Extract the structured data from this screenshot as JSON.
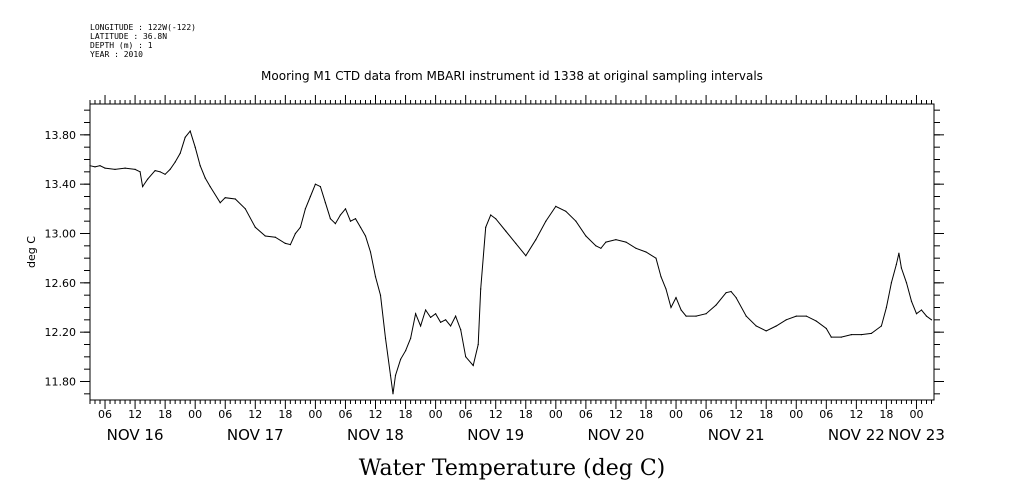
{
  "header": {
    "longitude": "LONGITUDE : 122W(-122)",
    "latitude": "LATITUDE : 36.8N",
    "depth": "DEPTH (m) : 1",
    "year": "YEAR : 2010"
  },
  "chart_data": {
    "type": "line",
    "title": "Mooring M1 CTD data from MBARI instrument id 1338 at original sampling intervals",
    "xlabel": "Water Temperature (deg C)",
    "ylabel": "deg C",
    "ylim": [
      11.65,
      14.05
    ],
    "xlim": [
      "2010-11-16T03:00",
      "2010-11-23T03:30"
    ],
    "y_ticks": [
      {
        "value": 13.8,
        "label": "13.80"
      },
      {
        "value": 13.4,
        "label": "13.40"
      },
      {
        "value": 13.0,
        "label": "13.00"
      },
      {
        "value": 12.6,
        "label": "12.60"
      },
      {
        "value": 12.2,
        "label": "12.20"
      },
      {
        "value": 11.8,
        "label": "11.80"
      }
    ],
    "hour_ticks": [
      {
        "t": "2010-11-16T06:00",
        "label": "06"
      },
      {
        "t": "2010-11-16T12:00",
        "label": "12"
      },
      {
        "t": "2010-11-16T18:00",
        "label": "18"
      },
      {
        "t": "2010-11-17T00:00",
        "label": "00"
      },
      {
        "t": "2010-11-17T06:00",
        "label": "06"
      },
      {
        "t": "2010-11-17T12:00",
        "label": "12"
      },
      {
        "t": "2010-11-17T18:00",
        "label": "18"
      },
      {
        "t": "2010-11-18T00:00",
        "label": "00"
      },
      {
        "t": "2010-11-18T06:00",
        "label": "06"
      },
      {
        "t": "2010-11-18T12:00",
        "label": "12"
      },
      {
        "t": "2010-11-18T18:00",
        "label": "18"
      },
      {
        "t": "2010-11-19T00:00",
        "label": "00"
      },
      {
        "t": "2010-11-19T06:00",
        "label": "06"
      },
      {
        "t": "2010-11-19T12:00",
        "label": "12"
      },
      {
        "t": "2010-11-19T18:00",
        "label": "18"
      },
      {
        "t": "2010-11-20T00:00",
        "label": "00"
      },
      {
        "t": "2010-11-20T06:00",
        "label": "06"
      },
      {
        "t": "2010-11-20T12:00",
        "label": "12"
      },
      {
        "t": "2010-11-20T18:00",
        "label": "18"
      },
      {
        "t": "2010-11-21T00:00",
        "label": "00"
      },
      {
        "t": "2010-11-21T06:00",
        "label": "06"
      },
      {
        "t": "2010-11-21T12:00",
        "label": "12"
      },
      {
        "t": "2010-11-21T18:00",
        "label": "18"
      },
      {
        "t": "2010-11-22T00:00",
        "label": "00"
      },
      {
        "t": "2010-11-22T06:00",
        "label": "06"
      },
      {
        "t": "2010-11-22T12:00",
        "label": "12"
      },
      {
        "t": "2010-11-22T18:00",
        "label": "18"
      },
      {
        "t": "2010-11-23T00:00",
        "label": "00"
      }
    ],
    "day_labels": [
      {
        "t": "2010-11-16T12:00",
        "label": "NOV 16"
      },
      {
        "t": "2010-11-17T12:00",
        "label": "NOV 17"
      },
      {
        "t": "2010-11-18T12:00",
        "label": "NOV 18"
      },
      {
        "t": "2010-11-19T12:00",
        "label": "NOV 19"
      },
      {
        "t": "2010-11-20T12:00",
        "label": "NOV 20"
      },
      {
        "t": "2010-11-21T12:00",
        "label": "NOV 21"
      },
      {
        "t": "2010-11-22T12:00",
        "label": "NOV 22"
      },
      {
        "t": "2010-11-23T00:00",
        "label": "NOV 23"
      }
    ],
    "grid": false,
    "series": [
      {
        "color": "#000000",
        "points": [
          [
            "2010-11-16T03:00",
            13.55
          ],
          [
            "2010-11-16T04:00",
            13.54
          ],
          [
            "2010-11-16T05:00",
            13.55
          ],
          [
            "2010-11-16T06:00",
            13.53
          ],
          [
            "2010-11-16T08:00",
            13.52
          ],
          [
            "2010-11-16T10:00",
            13.53
          ],
          [
            "2010-11-16T12:00",
            13.52
          ],
          [
            "2010-11-16T13:00",
            13.5
          ],
          [
            "2010-11-16T13:30",
            13.38
          ],
          [
            "2010-11-16T14:30",
            13.44
          ],
          [
            "2010-11-16T16:00",
            13.51
          ],
          [
            "2010-11-16T17:00",
            13.5
          ],
          [
            "2010-11-16T18:00",
            13.48
          ],
          [
            "2010-11-16T19:00",
            13.52
          ],
          [
            "2010-11-16T20:00",
            13.58
          ],
          [
            "2010-11-16T21:00",
            13.65
          ],
          [
            "2010-11-16T22:00",
            13.78
          ],
          [
            "2010-11-16T23:00",
            13.83
          ],
          [
            "2010-11-17T00:00",
            13.7
          ],
          [
            "2010-11-17T01:00",
            13.55
          ],
          [
            "2010-11-17T02:00",
            13.45
          ],
          [
            "2010-11-17T03:00",
            13.38
          ],
          [
            "2010-11-17T05:00",
            13.25
          ],
          [
            "2010-11-17T06:00",
            13.29
          ],
          [
            "2010-11-17T08:00",
            13.28
          ],
          [
            "2010-11-17T10:00",
            13.2
          ],
          [
            "2010-11-17T12:00",
            13.05
          ],
          [
            "2010-11-17T14:00",
            12.98
          ],
          [
            "2010-11-17T16:00",
            12.97
          ],
          [
            "2010-11-17T18:00",
            12.92
          ],
          [
            "2010-11-17T19:00",
            12.91
          ],
          [
            "2010-11-17T20:00",
            13.0
          ],
          [
            "2010-11-17T21:00",
            13.05
          ],
          [
            "2010-11-17T22:00",
            13.2
          ],
          [
            "2010-11-17T23:00",
            13.3
          ],
          [
            "2010-11-18T00:00",
            13.4
          ],
          [
            "2010-11-18T01:00",
            13.38
          ],
          [
            "2010-11-18T02:00",
            13.25
          ],
          [
            "2010-11-18T03:00",
            13.12
          ],
          [
            "2010-11-18T04:00",
            13.08
          ],
          [
            "2010-11-18T05:00",
            13.15
          ],
          [
            "2010-11-18T06:00",
            13.2
          ],
          [
            "2010-11-18T07:00",
            13.1
          ],
          [
            "2010-11-18T08:00",
            13.12
          ],
          [
            "2010-11-18T09:00",
            13.05
          ],
          [
            "2010-11-18T10:00",
            12.98
          ],
          [
            "2010-11-18T11:00",
            12.85
          ],
          [
            "2010-11-18T12:00",
            12.65
          ],
          [
            "2010-11-18T13:00",
            12.5
          ],
          [
            "2010-11-18T14:00",
            12.15
          ],
          [
            "2010-11-18T15:00",
            11.85
          ],
          [
            "2010-11-18T15:30",
            11.7
          ],
          [
            "2010-11-18T16:00",
            11.85
          ],
          [
            "2010-11-18T17:00",
            11.98
          ],
          [
            "2010-11-18T18:00",
            12.05
          ],
          [
            "2010-11-18T19:00",
            12.15
          ],
          [
            "2010-11-18T20:00",
            12.35
          ],
          [
            "2010-11-18T21:00",
            12.25
          ],
          [
            "2010-11-18T22:00",
            12.38
          ],
          [
            "2010-11-18T23:00",
            12.32
          ],
          [
            "2010-11-19T00:00",
            12.35
          ],
          [
            "2010-11-19T01:00",
            12.28
          ],
          [
            "2010-11-19T02:00",
            12.3
          ],
          [
            "2010-11-19T03:00",
            12.25
          ],
          [
            "2010-11-19T04:00",
            12.33
          ],
          [
            "2010-11-19T05:00",
            12.22
          ],
          [
            "2010-11-19T06:00",
            12.0
          ],
          [
            "2010-11-19T07:30",
            11.93
          ],
          [
            "2010-11-19T08:30",
            12.1
          ],
          [
            "2010-11-19T09:00",
            12.55
          ],
          [
            "2010-11-19T10:00",
            13.05
          ],
          [
            "2010-11-19T11:00",
            13.15
          ],
          [
            "2010-11-19T12:00",
            13.12
          ],
          [
            "2010-11-19T14:00",
            13.02
          ],
          [
            "2010-11-19T16:00",
            12.92
          ],
          [
            "2010-11-19T18:00",
            12.82
          ],
          [
            "2010-11-19T20:00",
            12.95
          ],
          [
            "2010-11-19T22:00",
            13.1
          ],
          [
            "2010-11-20T00:00",
            13.22
          ],
          [
            "2010-11-20T02:00",
            13.18
          ],
          [
            "2010-11-20T04:00",
            13.1
          ],
          [
            "2010-11-20T06:00",
            12.98
          ],
          [
            "2010-11-20T08:00",
            12.9
          ],
          [
            "2010-11-20T09:00",
            12.88
          ],
          [
            "2010-11-20T10:00",
            12.93
          ],
          [
            "2010-11-20T12:00",
            12.95
          ],
          [
            "2010-11-20T14:00",
            12.93
          ],
          [
            "2010-11-20T16:00",
            12.88
          ],
          [
            "2010-11-20T18:00",
            12.85
          ],
          [
            "2010-11-20T20:00",
            12.8
          ],
          [
            "2010-11-20T21:00",
            12.65
          ],
          [
            "2010-11-20T22:00",
            12.55
          ],
          [
            "2010-11-20T23:00",
            12.4
          ],
          [
            "2010-11-21T00:00",
            12.48
          ],
          [
            "2010-11-21T01:00",
            12.38
          ],
          [
            "2010-11-21T02:00",
            12.33
          ],
          [
            "2010-11-21T04:00",
            12.33
          ],
          [
            "2010-11-21T06:00",
            12.35
          ],
          [
            "2010-11-21T08:00",
            12.42
          ],
          [
            "2010-11-21T10:00",
            12.52
          ],
          [
            "2010-11-21T11:00",
            12.53
          ],
          [
            "2010-11-21T12:00",
            12.48
          ],
          [
            "2010-11-21T14:00",
            12.33
          ],
          [
            "2010-11-21T16:00",
            12.25
          ],
          [
            "2010-11-21T18:00",
            12.21
          ],
          [
            "2010-11-21T20:00",
            12.25
          ],
          [
            "2010-11-21T22:00",
            12.3
          ],
          [
            "2010-11-22T00:00",
            12.33
          ],
          [
            "2010-11-22T02:00",
            12.33
          ],
          [
            "2010-11-22T04:00",
            12.29
          ],
          [
            "2010-11-22T06:00",
            12.23
          ],
          [
            "2010-11-22T07:00",
            12.16
          ],
          [
            "2010-11-22T09:00",
            12.16
          ],
          [
            "2010-11-22T11:00",
            12.18
          ],
          [
            "2010-11-22T13:00",
            12.18
          ],
          [
            "2010-11-22T15:00",
            12.19
          ],
          [
            "2010-11-22T17:00",
            12.25
          ],
          [
            "2010-11-22T18:00",
            12.4
          ],
          [
            "2010-11-22T19:00",
            12.6
          ],
          [
            "2010-11-22T20:00",
            12.75
          ],
          [
            "2010-11-22T20:30",
            12.84
          ],
          [
            "2010-11-22T21:00",
            12.72
          ],
          [
            "2010-11-22T22:00",
            12.6
          ],
          [
            "2010-11-22T23:00",
            12.45
          ],
          [
            "2010-11-23T00:00",
            12.35
          ],
          [
            "2010-11-23T01:00",
            12.38
          ],
          [
            "2010-11-23T02:00",
            12.33
          ],
          [
            "2010-11-23T03:00",
            12.3
          ]
        ]
      }
    ]
  }
}
